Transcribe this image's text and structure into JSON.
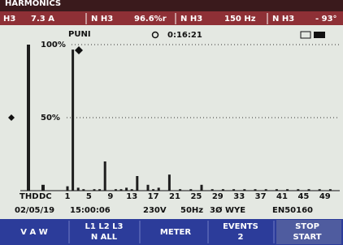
{
  "header": {
    "title": "HARMONICS",
    "readings": [
      {
        "label": "H3",
        "value": "7.3 A"
      },
      {
        "label": "N H3",
        "value": "96.6%r"
      },
      {
        "label": "N H3",
        "value": "150 Hz"
      },
      {
        "label": "N H3",
        "value": "- 93°"
      }
    ]
  },
  "chart_data": {
    "type": "bar",
    "y_label": "PUNI",
    "timer": "0:16:21",
    "categories": [
      "THD",
      "DC",
      "1",
      null,
      null,
      null,
      "5",
      null,
      null,
      null,
      "9",
      null,
      null,
      null,
      "13",
      null,
      null,
      null,
      "17",
      null,
      null,
      null,
      "21",
      null,
      null,
      null,
      "25",
      null,
      null,
      null,
      "29",
      null,
      null,
      null,
      "33",
      null,
      null,
      null,
      "37",
      null,
      null,
      null,
      "41",
      null,
      null,
      null,
      "45",
      null,
      null,
      null,
      "49",
      null
    ],
    "values": [
      100,
      4,
      3,
      96.6,
      2,
      1,
      0,
      1,
      1,
      20,
      0,
      1,
      1,
      2,
      1,
      10,
      0,
      4,
      1,
      2,
      0,
      11,
      0,
      1,
      0,
      1,
      0,
      4,
      0,
      1,
      0,
      1,
      0,
      1,
      0,
      1,
      0,
      1,
      0,
      1,
      0,
      1,
      0,
      1,
      0,
      1,
      0,
      1,
      0,
      1,
      0,
      1
    ],
    "color": "#1e1e1e",
    "ylim": [
      0,
      100
    ],
    "yticks": [
      {
        "value": 50,
        "label": "50%"
      },
      {
        "value": 100,
        "label": "100%"
      }
    ],
    "grid": true
  },
  "status": {
    "date": "02/05/19",
    "time": "15:00:06",
    "voltage": "230V",
    "frequency": "50Hz",
    "configuration": "3Ø WYE",
    "standard": "EN50160"
  },
  "softkeys": [
    {
      "lines": [
        "V A W"
      ]
    },
    {
      "lines": [
        "L1 L2 L3",
        "N ALL"
      ]
    },
    {
      "lines": [
        "METER"
      ]
    },
    {
      "lines": [
        "EVENTS",
        "2"
      ]
    },
    {
      "lines": [
        "STOP",
        "START"
      ]
    }
  ]
}
